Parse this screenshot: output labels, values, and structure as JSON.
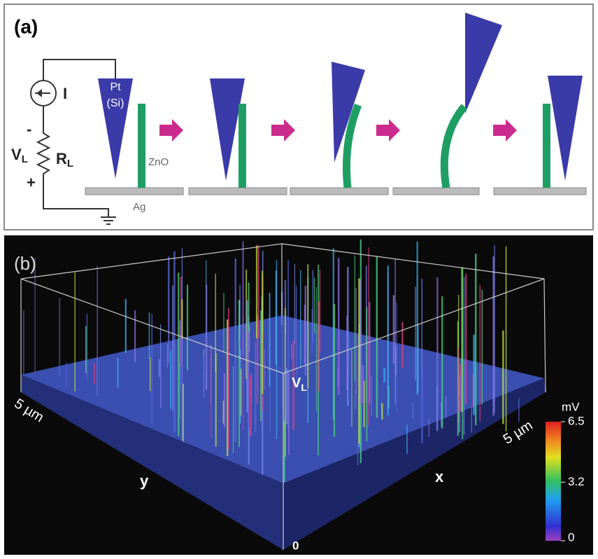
{
  "panel_a": {
    "label": "(a)",
    "current": "I",
    "minus": "-",
    "plus": "+",
    "voltage": {
      "main": "V",
      "sub": "L"
    },
    "resistor": {
      "main": "R",
      "sub": "L"
    },
    "tip_material": "Pt",
    "tip_core": "(Si)",
    "nanowire": "ZnO",
    "substrate": "Ag"
  },
  "panel_b": {
    "label": "(b)",
    "axis_v": {
      "main": "V",
      "sub": "L"
    },
    "y_extent": "5 µm",
    "x_extent": "5 µm",
    "y_axis": "y",
    "x_axis": "x",
    "origin": "0",
    "colorbar": {
      "unit": "mV",
      "lim": [
        0,
        6.5
      ],
      "ticks": [
        0,
        3.2,
        6.5
      ]
    }
  }
}
